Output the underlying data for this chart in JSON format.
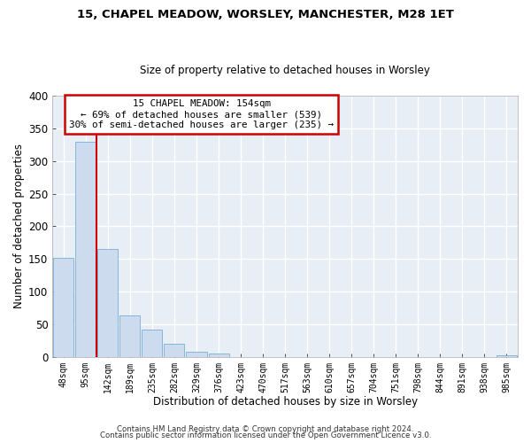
{
  "title1": "15, CHAPEL MEADOW, WORSLEY, MANCHESTER, M28 1ET",
  "title2": "Size of property relative to detached houses in Worsley",
  "xlabel": "Distribution of detached houses by size in Worsley",
  "ylabel": "Number of detached properties",
  "bin_labels": [
    "48sqm",
    "95sqm",
    "142sqm",
    "189sqm",
    "235sqm",
    "282sqm",
    "329sqm",
    "376sqm",
    "423sqm",
    "470sqm",
    "517sqm",
    "563sqm",
    "610sqm",
    "657sqm",
    "704sqm",
    "751sqm",
    "798sqm",
    "844sqm",
    "891sqm",
    "938sqm",
    "985sqm"
  ],
  "bar_values": [
    151,
    330,
    165,
    63,
    42,
    20,
    8,
    5,
    0,
    0,
    0,
    0,
    0,
    0,
    0,
    0,
    0,
    0,
    0,
    0,
    3
  ],
  "bar_color": "#ccdcee",
  "bar_edge_color": "#7aadd4",
  "ylim": [
    0,
    400
  ],
  "yticks": [
    0,
    50,
    100,
    150,
    200,
    250,
    300,
    350,
    400
  ],
  "annotation_title": "15 CHAPEL MEADOW: 154sqm",
  "annotation_line1": "← 69% of detached houses are smaller (539)",
  "annotation_line2": "30% of semi-detached houses are larger (235) →",
  "footer1": "Contains HM Land Registry data © Crown copyright and database right 2024.",
  "footer2": "Contains public sector information licensed under the Open Government Licence v3.0.",
  "bg_color": "#ffffff",
  "plot_bg_color": "#e8eef6",
  "grid_color": "#ffffff",
  "annotation_box_color": "#ffffff",
  "annotation_box_edge": "#cc0000",
  "red_line_color": "#cc0000",
  "red_line_x": 1.5
}
